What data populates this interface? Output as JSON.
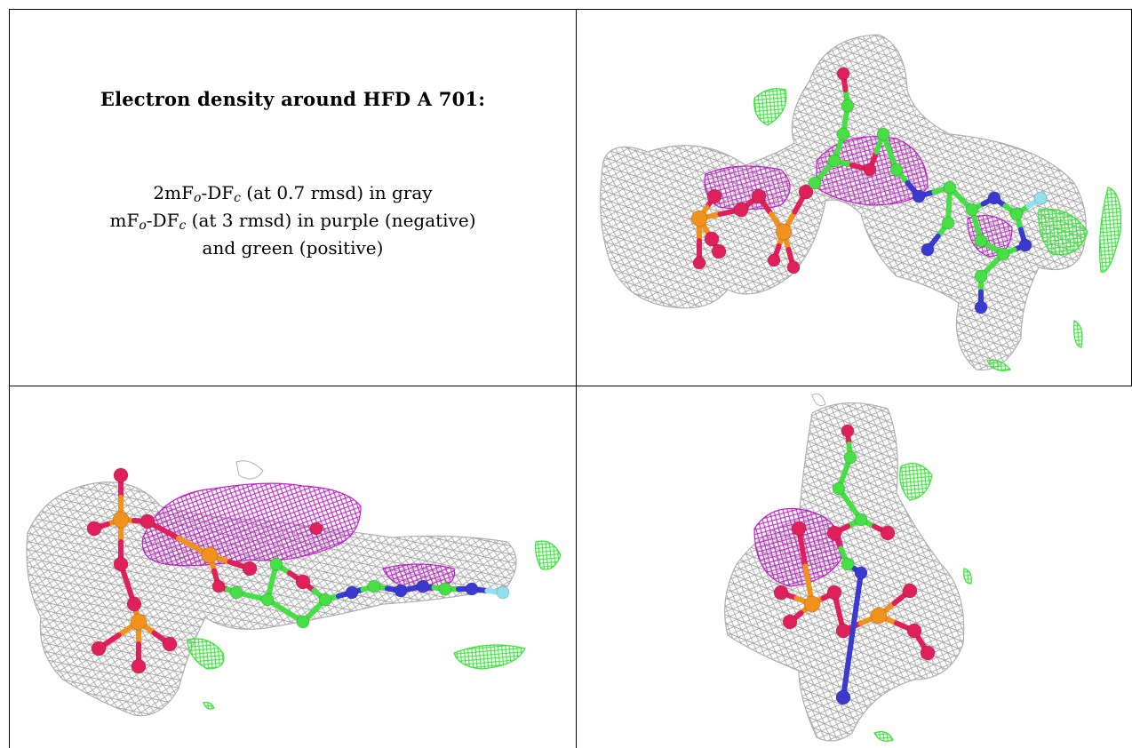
{
  "caption": {
    "title": "Electron density around HFD A 701:",
    "line1": {
      "a": "2mF",
      "sub_o": "o",
      "b": "-DF",
      "sub_c": "c",
      "rest": " (at 0.7 rmsd) in gray"
    },
    "line2": {
      "a": "mF",
      "sub_o": "o",
      "b": "-DF",
      "sub_c": "c",
      "rest": " (at 3 rmsd) in purple (negative)"
    },
    "line3": "and green (positive)"
  },
  "legend_colors": {
    "map_2fofc": "#a8a8a8",
    "map_fofc_negative": "#c020c8",
    "map_fofc_positive": "#33e633"
  },
  "atom_colors": {
    "carbon": "#44e044",
    "oxygen": "#e0205a",
    "phosphorus": "#f0921c",
    "nitrogen": "#3a3ad0",
    "fluorine": "#90e0ee"
  },
  "panels": [
    {
      "name": "view-top-right"
    },
    {
      "name": "view-bottom-left"
    },
    {
      "name": "view-bottom-right"
    }
  ]
}
